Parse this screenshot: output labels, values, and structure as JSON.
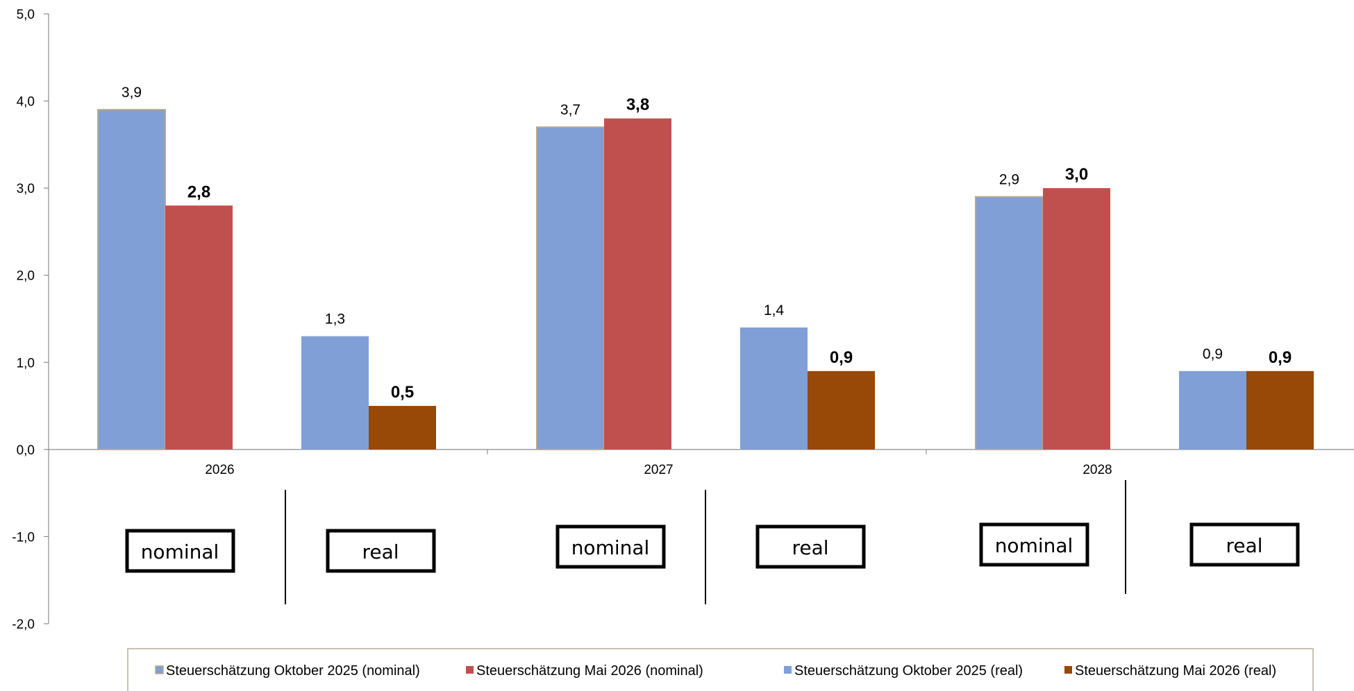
{
  "chart_data": {
    "type": "bar",
    "title": "",
    "xlabel": "",
    "ylabel": "",
    "ylim": [
      -2.0,
      5.0
    ],
    "yticks": [
      "5,0",
      "4,0",
      "3,0",
      "2,0",
      "1,0",
      "0,0",
      "-1,0",
      "-2,0"
    ],
    "ytick_values": [
      5,
      4,
      3,
      2,
      1,
      0,
      -1,
      -2
    ],
    "categories": [
      "2026",
      "2027",
      "2028"
    ],
    "groups": [
      "nominal",
      "real"
    ],
    "grid": false,
    "legend_position": "bottom",
    "series": [
      {
        "name": "Steuerschätzung Oktober 2025 (nominal)",
        "group": "nominal",
        "color": "#7F9FD6",
        "values": [
          3.9,
          3.7,
          2.9
        ],
        "labels": [
          "3,9",
          "3,7",
          "2,9"
        ],
        "label_bold": false
      },
      {
        "name": "Steuerschätzung Mai 2026 (nominal)",
        "group": "nominal",
        "color": "#C0504D",
        "values": [
          2.8,
          3.8,
          3.0
        ],
        "labels": [
          "2,8",
          "3,8",
          "3,0"
        ],
        "label_bold": true
      },
      {
        "name": "Steuerschätzung Oktober 2025 (real)",
        "group": "real",
        "color": "#7F9FD6",
        "values": [
          1.3,
          1.4,
          0.9
        ],
        "labels": [
          "1,3",
          "1,4",
          "0,9"
        ],
        "label_bold": false
      },
      {
        "name": "Steuerschätzung Mai 2026 (real)",
        "group": "real",
        "color": "#984807",
        "values": [
          0.5,
          0.9,
          0.9
        ],
        "labels": [
          "0,5",
          "0,9",
          "0,9"
        ],
        "label_bold": true
      }
    ],
    "group_boxes": [
      "nominal",
      "real",
      "nominal",
      "real",
      "nominal",
      "real"
    ]
  }
}
